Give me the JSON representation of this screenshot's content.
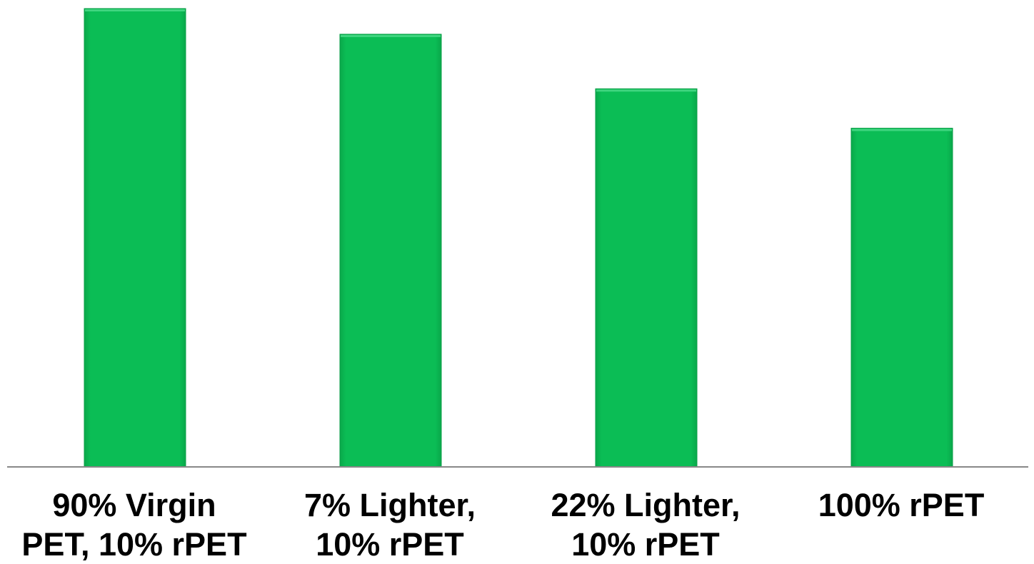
{
  "chart_data": {
    "type": "bar",
    "categories": [
      "90% Virgin\nPET, 10% rPET",
      "7% Lighter,\n10% rPET",
      "22% Lighter,\n10% rPET",
      "100% rPET"
    ],
    "values": [
      100,
      94.4,
      82.5,
      73.9
    ],
    "ylim": [
      0,
      100
    ],
    "grid": false,
    "legend": "none",
    "colors": {
      "bar": "#0bbd55",
      "bar_edge": "#0a9e47",
      "axis": "#888888",
      "label": "#000000"
    }
  }
}
